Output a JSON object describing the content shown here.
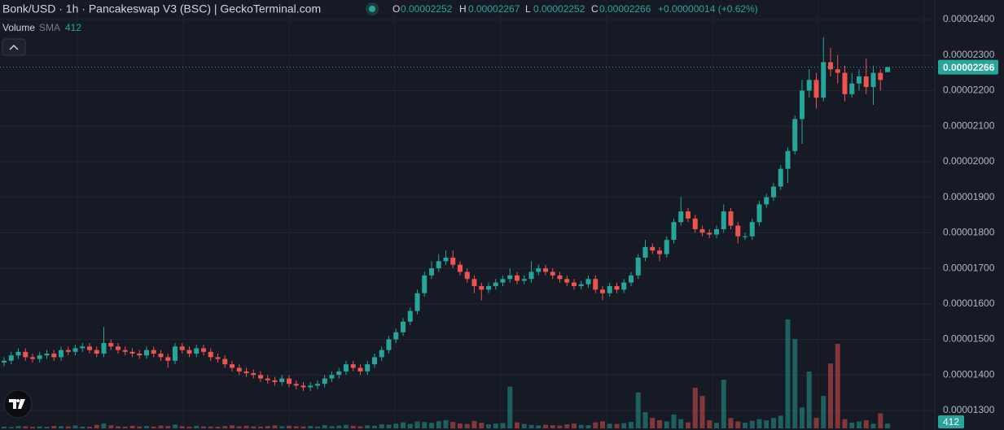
{
  "chart_data": {
    "type": "candlestick",
    "title": "Bonk/USD · 1h · Pancakeswap V3 (BSC) | GeckoTerminal.com",
    "legend_ohlc": [
      {
        "label": "O",
        "value": "0.00002252"
      },
      {
        "label": "H",
        "value": "0.00002267"
      },
      {
        "label": "L",
        "value": "0.00002252"
      },
      {
        "label": "C",
        "value": "0.00002266"
      }
    ],
    "change": "+0.00000014 (+0.62%)",
    "volume_label": "Volume",
    "volume_sma_label": "SMA",
    "volume_sma": 412,
    "up_color": "#26a69a",
    "down_color": "#ef5350",
    "ylim": [
      1.3e-05,
      2.4e-05
    ],
    "yticks": [
      {
        "value": 1.3e-05,
        "label": "0.00001300"
      },
      {
        "value": 1.4e-05,
        "label": "0.00001400"
      },
      {
        "value": 1.5e-05,
        "label": "0.00001500"
      },
      {
        "value": 1.6e-05,
        "label": "0.00001600"
      },
      {
        "value": 1.7e-05,
        "label": "0.00001700"
      },
      {
        "value": 1.8e-05,
        "label": "0.00001800"
      },
      {
        "value": 1.9e-05,
        "label": "0.00001900"
      },
      {
        "value": 2e-05,
        "label": "0.00002000"
      },
      {
        "value": 2.1e-05,
        "label": "0.00002100"
      },
      {
        "value": 2.2e-05,
        "label": "0.00002200"
      },
      {
        "value": 2.3e-05,
        "label": "0.00002300"
      },
      {
        "value": 2.4e-05,
        "label": "0.00002400"
      }
    ],
    "grid": true,
    "last_price": {
      "value": 2.266e-05,
      "label": "0.00002266"
    },
    "ohlc": [
      [
        1.435e-05,
        1.45e-05,
        1.425e-05,
        1.44e-05
      ],
      [
        1.44e-05,
        1.465e-05,
        1.43e-05,
        1.455e-05
      ],
      [
        1.455e-05,
        1.475e-05,
        1.445e-05,
        1.465e-05
      ],
      [
        1.465e-05,
        1.475e-05,
        1.44e-05,
        1.45e-05
      ],
      [
        1.45e-05,
        1.46e-05,
        1.435e-05,
        1.445e-05
      ],
      [
        1.445e-05,
        1.465e-05,
        1.435e-05,
        1.455e-05
      ],
      [
        1.455e-05,
        1.47e-05,
        1.445e-05,
        1.46e-05
      ],
      [
        1.46e-05,
        1.47e-05,
        1.44e-05,
        1.45e-05
      ],
      [
        1.45e-05,
        1.48e-05,
        1.44e-05,
        1.47e-05
      ],
      [
        1.47e-05,
        1.48e-05,
        1.455e-05,
        1.465e-05
      ],
      [
        1.465e-05,
        1.485e-05,
        1.455e-05,
        1.475e-05
      ],
      [
        1.475e-05,
        1.49e-05,
        1.465e-05,
        1.48e-05
      ],
      [
        1.48e-05,
        1.49e-05,
        1.46e-05,
        1.47e-05
      ],
      [
        1.47e-05,
        1.48e-05,
        1.45e-05,
        1.46e-05
      ],
      [
        1.46e-05,
        1.535e-05,
        1.45e-05,
        1.49e-05
      ],
      [
        1.49e-05,
        1.5e-05,
        1.47e-05,
        1.48e-05
      ],
      [
        1.48e-05,
        1.49e-05,
        1.46e-05,
        1.47e-05
      ],
      [
        1.47e-05,
        1.48e-05,
        1.455e-05,
        1.465e-05
      ],
      [
        1.465e-05,
        1.475e-05,
        1.45e-05,
        1.46e-05
      ],
      [
        1.46e-05,
        1.47e-05,
        1.445e-05,
        1.455e-05
      ],
      [
        1.455e-05,
        1.48e-05,
        1.445e-05,
        1.47e-05
      ],
      [
        1.47e-05,
        1.48e-05,
        1.45e-05,
        1.46e-05
      ],
      [
        1.46e-05,
        1.47e-05,
        1.44e-05,
        1.45e-05
      ],
      [
        1.45e-05,
        1.46e-05,
        1.42e-05,
        1.44e-05
      ],
      [
        1.44e-05,
        1.49e-05,
        1.43e-05,
        1.48e-05
      ],
      [
        1.48e-05,
        1.49e-05,
        1.46e-05,
        1.47e-05
      ],
      [
        1.47e-05,
        1.48e-05,
        1.45e-05,
        1.46e-05
      ],
      [
        1.46e-05,
        1.485e-05,
        1.45e-05,
        1.475e-05
      ],
      [
        1.475e-05,
        1.485e-05,
        1.455e-05,
        1.465e-05
      ],
      [
        1.465e-05,
        1.475e-05,
        1.44e-05,
        1.45e-05
      ],
      [
        1.45e-05,
        1.46e-05,
        1.435e-05,
        1.445e-05
      ],
      [
        1.445e-05,
        1.455e-05,
        1.42e-05,
        1.43e-05
      ],
      [
        1.43e-05,
        1.44e-05,
        1.41e-05,
        1.42e-05
      ],
      [
        1.42e-05,
        1.43e-05,
        1.4e-05,
        1.41e-05
      ],
      [
        1.41e-05,
        1.42e-05,
        1.395e-05,
        1.405e-05
      ],
      [
        1.405e-05,
        1.415e-05,
        1.39e-05,
        1.4e-05
      ],
      [
        1.4e-05,
        1.41e-05,
        1.38e-05,
        1.39e-05
      ],
      [
        1.39e-05,
        1.4e-05,
        1.375e-05,
        1.385e-05
      ],
      [
        1.385e-05,
        1.395e-05,
        1.37e-05,
        1.38e-05
      ],
      [
        1.38e-05,
        1.4e-05,
        1.37e-05,
        1.39e-05
      ],
      [
        1.39e-05,
        1.4e-05,
        1.365e-05,
        1.375e-05
      ],
      [
        1.375e-05,
        1.385e-05,
        1.36e-05,
        1.37e-05
      ],
      [
        1.37e-05,
        1.38e-05,
        1.355e-05,
        1.365e-05
      ],
      [
        1.365e-05,
        1.38e-05,
        1.355e-05,
        1.37e-05
      ],
      [
        1.37e-05,
        1.385e-05,
        1.36e-05,
        1.375e-05
      ],
      [
        1.375e-05,
        1.4e-05,
        1.365e-05,
        1.39e-05
      ],
      [
        1.39e-05,
        1.41e-05,
        1.38e-05,
        1.4e-05
      ],
      [
        1.4e-05,
        1.42e-05,
        1.39e-05,
        1.41e-05
      ],
      [
        1.41e-05,
        1.44e-05,
        1.4e-05,
        1.43e-05
      ],
      [
        1.43e-05,
        1.44e-05,
        1.41e-05,
        1.42e-05
      ],
      [
        1.42e-05,
        1.43e-05,
        1.4e-05,
        1.41e-05
      ],
      [
        1.41e-05,
        1.44e-05,
        1.4e-05,
        1.43e-05
      ],
      [
        1.43e-05,
        1.46e-05,
        1.42e-05,
        1.45e-05
      ],
      [
        1.45e-05,
        1.48e-05,
        1.44e-05,
        1.47e-05
      ],
      [
        1.47e-05,
        1.51e-05,
        1.46e-05,
        1.5e-05
      ],
      [
        1.5e-05,
        1.53e-05,
        1.49e-05,
        1.52e-05
      ],
      [
        1.52e-05,
        1.56e-05,
        1.51e-05,
        1.55e-05
      ],
      [
        1.55e-05,
        1.59e-05,
        1.54e-05,
        1.58e-05
      ],
      [
        1.58e-05,
        1.64e-05,
        1.57e-05,
        1.63e-05
      ],
      [
        1.63e-05,
        1.69e-05,
        1.62e-05,
        1.68e-05
      ],
      [
        1.68e-05,
        1.72e-05,
        1.67e-05,
        1.7e-05
      ],
      [
        1.7e-05,
        1.74e-05,
        1.69e-05,
        1.72e-05
      ],
      [
        1.72e-05,
        1.75e-05,
        1.71e-05,
        1.73e-05
      ],
      [
        1.73e-05,
        1.75e-05,
        1.7e-05,
        1.71e-05
      ],
      [
        1.71e-05,
        1.72e-05,
        1.68e-05,
        1.69e-05
      ],
      [
        1.69e-05,
        1.7e-05,
        1.66e-05,
        1.67e-05
      ],
      [
        1.67e-05,
        1.68e-05,
        1.63e-05,
        1.65e-05
      ],
      [
        1.65e-05,
        1.66e-05,
        1.61e-05,
        1.64e-05
      ],
      [
        1.64e-05,
        1.66e-05,
        1.63e-05,
        1.65e-05
      ],
      [
        1.65e-05,
        1.67e-05,
        1.64e-05,
        1.66e-05
      ],
      [
        1.66e-05,
        1.68e-05,
        1.65e-05,
        1.67e-05
      ],
      [
        1.67e-05,
        1.7e-05,
        1.66e-05,
        1.68e-05
      ],
      [
        1.68e-05,
        1.69e-05,
        1.655e-05,
        1.665e-05
      ],
      [
        1.665e-05,
        1.68e-05,
        1.655e-05,
        1.67e-05
      ],
      [
        1.67e-05,
        1.72e-05,
        1.66e-05,
        1.69e-05
      ],
      [
        1.69e-05,
        1.71e-05,
        1.68e-05,
        1.7e-05
      ],
      [
        1.7e-05,
        1.71e-05,
        1.68e-05,
        1.69e-05
      ],
      [
        1.69e-05,
        1.7e-05,
        1.67e-05,
        1.68e-05
      ],
      [
        1.68e-05,
        1.69e-05,
        1.66e-05,
        1.67e-05
      ],
      [
        1.67e-05,
        1.68e-05,
        1.65e-05,
        1.66e-05
      ],
      [
        1.66e-05,
        1.67e-05,
        1.64e-05,
        1.65e-05
      ],
      [
        1.65e-05,
        1.665e-05,
        1.64e-05,
        1.655e-05
      ],
      [
        1.655e-05,
        1.68e-05,
        1.645e-05,
        1.67e-05
      ],
      [
        1.67e-05,
        1.68e-05,
        1.63e-05,
        1.64e-05
      ],
      [
        1.64e-05,
        1.65e-05,
        1.61e-05,
        1.63e-05
      ],
      [
        1.63e-05,
        1.66e-05,
        1.62e-05,
        1.65e-05
      ],
      [
        1.65e-05,
        1.66e-05,
        1.63e-05,
        1.64e-05
      ],
      [
        1.64e-05,
        1.67e-05,
        1.63e-05,
        1.66e-05
      ],
      [
        1.66e-05,
        1.69e-05,
        1.65e-05,
        1.68e-05
      ],
      [
        1.68e-05,
        1.74e-05,
        1.67e-05,
        1.73e-05
      ],
      [
        1.73e-05,
        1.78e-05,
        1.72e-05,
        1.76e-05
      ],
      [
        1.76e-05,
        1.77e-05,
        1.74e-05,
        1.75e-05
      ],
      [
        1.75e-05,
        1.76e-05,
        1.72e-05,
        1.74e-05
      ],
      [
        1.74e-05,
        1.79e-05,
        1.73e-05,
        1.78e-05
      ],
      [
        1.78e-05,
        1.84e-05,
        1.77e-05,
        1.83e-05
      ],
      [
        1.83e-05,
        1.9e-05,
        1.82e-05,
        1.86e-05
      ],
      [
        1.86e-05,
        1.87e-05,
        1.83e-05,
        1.84e-05
      ],
      [
        1.84e-05,
        1.85e-05,
        1.8e-05,
        1.81e-05
      ],
      [
        1.81e-05,
        1.82e-05,
        1.79e-05,
        1.8e-05
      ],
      [
        1.8e-05,
        1.81e-05,
        1.785e-05,
        1.795e-05
      ],
      [
        1.795e-05,
        1.82e-05,
        1.785e-05,
        1.81e-05
      ],
      [
        1.81e-05,
        1.88e-05,
        1.8e-05,
        1.86e-05
      ],
      [
        1.86e-05,
        1.87e-05,
        1.81e-05,
        1.82e-05
      ],
      [
        1.82e-05,
        1.83e-05,
        1.77e-05,
        1.79e-05
      ],
      [
        1.79e-05,
        1.8e-05,
        1.78e-05,
        1.79e-05
      ],
      [
        1.79e-05,
        1.84e-05,
        1.78e-05,
        1.83e-05
      ],
      [
        1.83e-05,
        1.89e-05,
        1.82e-05,
        1.88e-05
      ],
      [
        1.88e-05,
        1.91e-05,
        1.87e-05,
        1.9e-05
      ],
      [
        1.9e-05,
        1.94e-05,
        1.89e-05,
        1.93e-05
      ],
      [
        1.93e-05,
        1.99e-05,
        1.92e-05,
        1.98e-05
      ],
      [
        1.98e-05,
        2.04e-05,
        1.94e-05,
        2.03e-05
      ],
      [
        2.03e-05,
        2.13e-05,
        2.02e-05,
        2.12e-05
      ],
      [
        2.12e-05,
        2.23e-05,
        2.05e-05,
        2.2e-05
      ],
      [
        2.2e-05,
        2.26e-05,
        2.18e-05,
        2.23e-05
      ],
      [
        2.23e-05,
        2.25e-05,
        2.15e-05,
        2.18e-05
      ],
      [
        2.18e-05,
        2.35e-05,
        2.17e-05,
        2.28e-05
      ],
      [
        2.28e-05,
        2.32e-05,
        2.24e-05,
        2.26e-05
      ],
      [
        2.26e-05,
        2.3e-05,
        2.22e-05,
        2.25e-05
      ],
      [
        2.25e-05,
        2.27e-05,
        2.17e-05,
        2.19e-05
      ],
      [
        2.19e-05,
        2.25e-05,
        2.18e-05,
        2.22e-05
      ],
      [
        2.22e-05,
        2.26e-05,
        2.2e-05,
        2.24e-05
      ],
      [
        2.24e-05,
        2.29e-05,
        2.19e-05,
        2.21e-05
      ],
      [
        2.21e-05,
        2.27e-05,
        2.16e-05,
        2.25e-05
      ],
      [
        2.25e-05,
        2.26e-05,
        2.2e-05,
        2.23e-05
      ],
      [
        2.252e-05,
        2.267e-05,
        2.252e-05,
        2.266e-05
      ]
    ],
    "volumes": [
      150,
      120,
      200,
      180,
      130,
      160,
      140,
      210,
      190,
      170,
      250,
      150,
      140,
      300,
      420,
      260,
      180,
      150,
      220,
      170,
      200,
      160,
      240,
      210,
      330,
      190,
      150,
      230,
      170,
      160,
      140,
      200,
      260,
      180,
      230,
      170,
      150,
      200,
      260,
      180,
      220,
      190,
      170,
      210,
      160,
      280,
      190,
      240,
      300,
      210,
      180,
      260,
      230,
      350,
      320,
      410,
      520,
      380,
      600,
      550,
      480,
      620,
      700,
      560,
      420,
      380,
      640,
      480,
      350,
      420,
      460,
      3600,
      520,
      380,
      300,
      260,
      310,
      280,
      240,
      350,
      420,
      300,
      280,
      520,
      610,
      400,
      380,
      450,
      560,
      3100,
      1400,
      900,
      700,
      600,
      1200,
      800,
      520,
      3500,
      2800,
      700,
      480,
      4200,
      900,
      600,
      500,
      650,
      800,
      700,
      900,
      1100,
      9400,
      7700,
      1800,
      4900,
      900,
      2800,
      5600,
      7300,
      800,
      500,
      600,
      700,
      400,
      1300,
      412
    ]
  }
}
